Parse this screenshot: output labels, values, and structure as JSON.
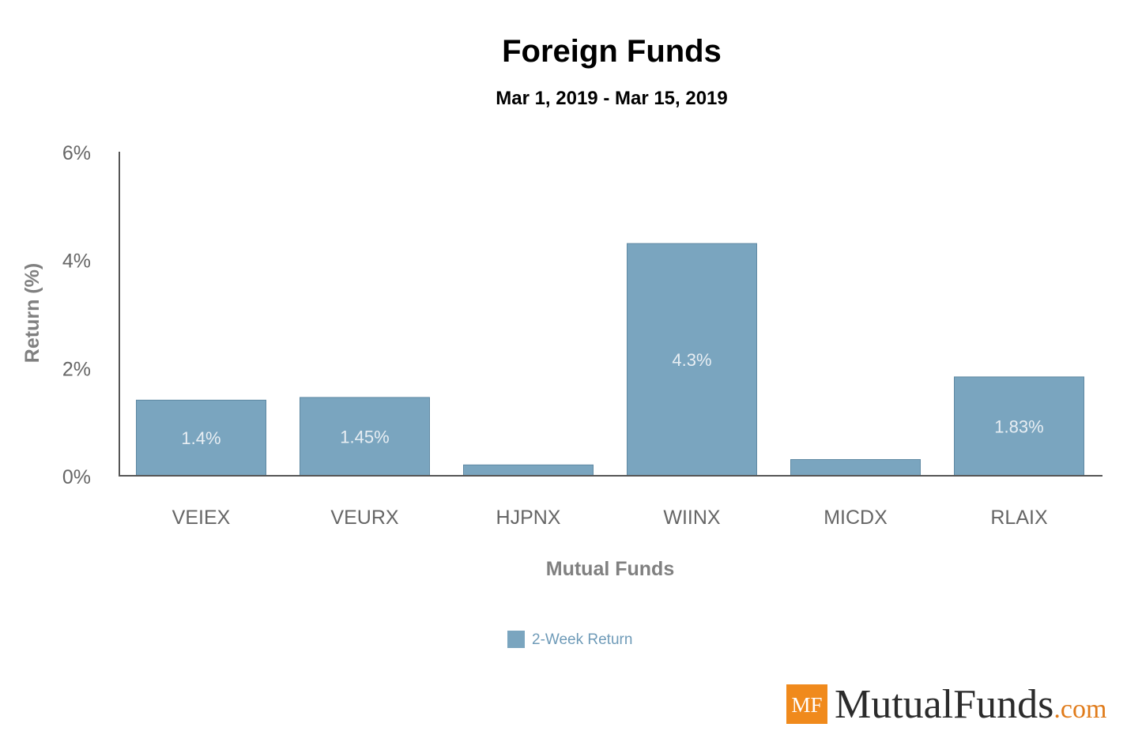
{
  "chart_data": {
    "type": "bar",
    "title": "Foreign Funds",
    "subtitle": "Mar 1, 2019 - Mar 15, 2019",
    "xlabel": "Mutual Funds",
    "ylabel": "Return (%)",
    "categories": [
      "VEIEX",
      "VEURX",
      "HJPNX",
      "WIINX",
      "MICDX",
      "RLAIX"
    ],
    "series": [
      {
        "name": "2-Week Return",
        "values": [
          1.4,
          1.45,
          0.2,
          4.3,
          0.3,
          1.83
        ],
        "data_labels": [
          "1.4%",
          "1.45%",
          "",
          "4.3%",
          "",
          "1.83%"
        ]
      }
    ],
    "ylim": [
      0,
      6
    ],
    "yticks": [
      0,
      2,
      4,
      6
    ],
    "ytick_labels": [
      "0%",
      "2%",
      "4%",
      "6%"
    ],
    "grid": false,
    "legend": "bottom-center"
  },
  "colors": {
    "bar": "#7aa5bf",
    "bar_stroke": "#5f89a3",
    "axis": "#555555",
    "legend_text": "#6f9bb8",
    "logo_orange": "#f08a1c",
    "logo_com": "#e07b1a"
  },
  "logo": {
    "badge": "MF",
    "name": "MutualFunds",
    "suffix": ".com"
  }
}
